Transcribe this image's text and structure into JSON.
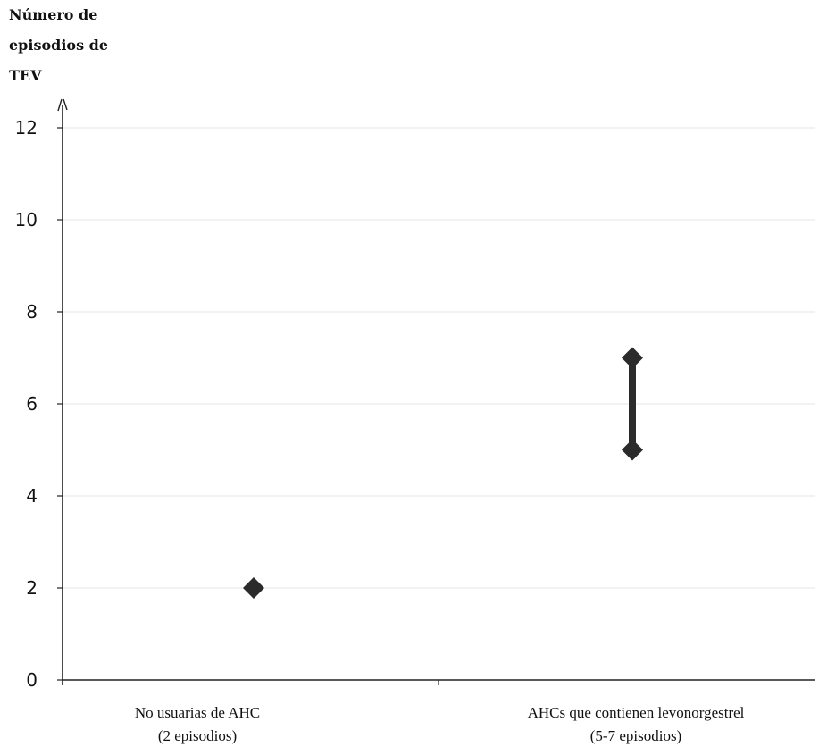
{
  "chart_data": {
    "type": "scatter",
    "ylabel_lines": [
      "Número de",
      "episodios de",
      "TEV"
    ],
    "ylim": [
      0,
      12
    ],
    "yticks": [
      0,
      2,
      4,
      6,
      8,
      10,
      12
    ],
    "grid": true,
    "categories": [
      {
        "line1": "No usuarias de AHC",
        "line2": "(2 episodios)"
      },
      {
        "line1": "AHCs que contienen levonorgestrel",
        "line2": "(5-7 episodios)"
      }
    ],
    "points": [
      {
        "category": 0,
        "low": 2,
        "high": 2
      },
      {
        "category": 1,
        "low": 5,
        "high": 7
      }
    ],
    "colors": {
      "marker": "#2b2b2b",
      "grid": "#e6e6e6",
      "axis": "#222222"
    }
  }
}
